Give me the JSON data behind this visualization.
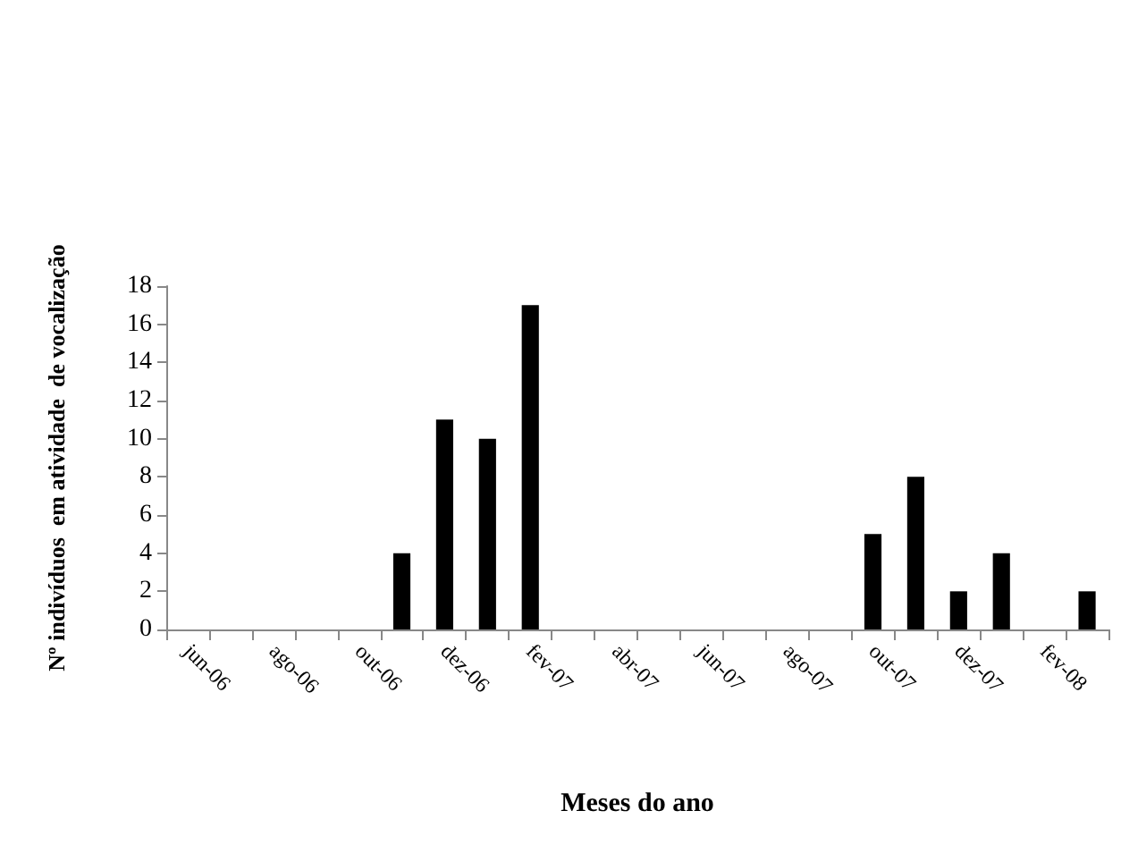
{
  "chart_data": {
    "type": "bar",
    "xlabel": "Meses do ano",
    "ylabel": "Nº indivíduos  em atividade  de vocalização",
    "categories": [
      "jun-06",
      null,
      "ago-06",
      null,
      "out-06",
      null,
      "dez-06",
      null,
      "fev-07",
      null,
      "abr-07",
      null,
      "jun-07",
      null,
      "ago-07",
      null,
      "out-07",
      null,
      "dez-07",
      null,
      "fev-08",
      null
    ],
    "values": [
      0,
      0,
      0,
      0,
      0,
      4,
      11,
      10,
      17,
      0,
      0,
      0,
      0,
      0,
      0,
      0,
      5,
      8,
      2,
      4,
      0,
      2
    ],
    "color": "#000000",
    "ylim": [
      0,
      18
    ],
    "yticks": [
      0,
      2,
      4,
      6,
      8,
      10,
      12,
      14,
      16,
      18
    ],
    "grid": false
  }
}
